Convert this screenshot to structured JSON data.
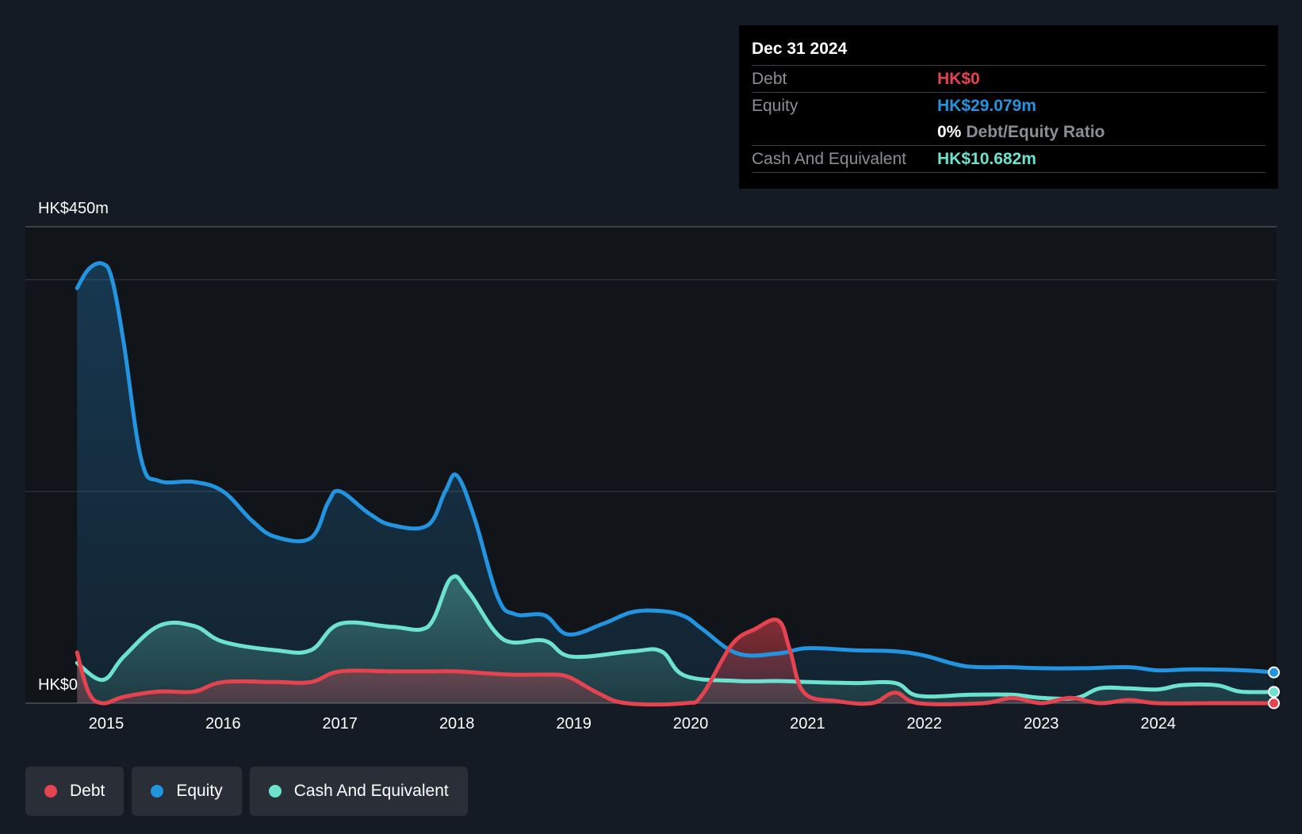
{
  "colors": {
    "background": "#151b24",
    "plot_background": "#111418",
    "debt": "#e5434f",
    "equity": "#2394df",
    "cash": "#6de3cf",
    "gridline": "#3a3f47"
  },
  "tooltip": {
    "date": "Dec 31 2024",
    "debt_label": "Debt",
    "debt_value": "HK$0",
    "equity_label": "Equity",
    "equity_value": "HK$29.079m",
    "ratio_value": "0%",
    "ratio_label": "Debt/Equity Ratio",
    "cash_label": "Cash And Equivalent",
    "cash_value": "HK$10.682m"
  },
  "legend": {
    "debt": "Debt",
    "equity": "Equity",
    "cash": "Cash And Equivalent"
  },
  "chart_data": {
    "type": "area",
    "title": "",
    "xlabel": "",
    "ylabel": "",
    "y_max_label": "HK$450m",
    "y_min_label": "HK$0",
    "ylim": [
      0,
      450
    ],
    "xlim": [
      2014.75,
      2024.99
    ],
    "x_ticks": [
      2015,
      2016,
      2017,
      2018,
      2019,
      2020,
      2021,
      2022,
      2023,
      2024
    ],
    "x_tick_labels": [
      "2015",
      "2016",
      "2017",
      "2018",
      "2019",
      "2020",
      "2021",
      "2022",
      "2023",
      "2024"
    ],
    "gridlines": [
      450,
      400,
      200,
      0
    ],
    "grid": true,
    "series": [
      {
        "name": "Equity",
        "color": "#2394df",
        "points": [
          [
            2014.75,
            392
          ],
          [
            2014.85,
            410
          ],
          [
            2014.97,
            415
          ],
          [
            2015.05,
            400
          ],
          [
            2015.15,
            340
          ],
          [
            2015.3,
            230
          ],
          [
            2015.45,
            210
          ],
          [
            2015.75,
            209
          ],
          [
            2016.0,
            200
          ],
          [
            2016.25,
            172
          ],
          [
            2016.45,
            157
          ],
          [
            2016.75,
            156
          ],
          [
            2016.9,
            190
          ],
          [
            2017.0,
            200
          ],
          [
            2017.25,
            179
          ],
          [
            2017.45,
            168
          ],
          [
            2017.75,
            168
          ],
          [
            2017.9,
            200
          ],
          [
            2018.0,
            215
          ],
          [
            2018.15,
            175
          ],
          [
            2018.35,
            100
          ],
          [
            2018.5,
            84
          ],
          [
            2018.75,
            83
          ],
          [
            2018.95,
            65
          ],
          [
            2019.25,
            75
          ],
          [
            2019.5,
            86
          ],
          [
            2019.75,
            87
          ],
          [
            2019.95,
            82
          ],
          [
            2020.1,
            70
          ],
          [
            2020.4,
            47
          ],
          [
            2020.75,
            47
          ],
          [
            2021.0,
            52
          ],
          [
            2021.4,
            50
          ],
          [
            2021.75,
            49
          ],
          [
            2022.0,
            45
          ],
          [
            2022.35,
            35
          ],
          [
            2022.75,
            34
          ],
          [
            2023.0,
            33
          ],
          [
            2023.35,
            33
          ],
          [
            2023.75,
            34
          ],
          [
            2024.0,
            31
          ],
          [
            2024.3,
            32
          ],
          [
            2024.75,
            31
          ],
          [
            2024.99,
            29.079
          ]
        ]
      },
      {
        "name": "Cash And Equivalent",
        "color": "#6de3cf",
        "points": [
          [
            2014.75,
            38
          ],
          [
            2014.97,
            22
          ],
          [
            2015.15,
            44
          ],
          [
            2015.45,
            73
          ],
          [
            2015.75,
            73
          ],
          [
            2016.0,
            58
          ],
          [
            2016.45,
            50
          ],
          [
            2016.75,
            50
          ],
          [
            2017.0,
            75
          ],
          [
            2017.45,
            72
          ],
          [
            2017.75,
            72
          ],
          [
            2017.95,
            118
          ],
          [
            2018.1,
            105
          ],
          [
            2018.4,
            60
          ],
          [
            2018.75,
            59
          ],
          [
            2018.98,
            44
          ],
          [
            2019.5,
            49
          ],
          [
            2019.75,
            49
          ],
          [
            2019.95,
            26
          ],
          [
            2020.4,
            21
          ],
          [
            2020.75,
            21
          ],
          [
            2021.0,
            20
          ],
          [
            2021.4,
            19
          ],
          [
            2021.75,
            19
          ],
          [
            2021.95,
            7
          ],
          [
            2022.4,
            8
          ],
          [
            2022.75,
            8
          ],
          [
            2023.0,
            5
          ],
          [
            2023.3,
            5
          ],
          [
            2023.5,
            14
          ],
          [
            2023.75,
            14
          ],
          [
            2024.0,
            13
          ],
          [
            2024.2,
            17
          ],
          [
            2024.5,
            17
          ],
          [
            2024.7,
            11
          ],
          [
            2024.99,
            10.682
          ]
        ]
      },
      {
        "name": "Debt",
        "color": "#e5434f",
        "points": [
          [
            2014.75,
            48
          ],
          [
            2014.85,
            10
          ],
          [
            2014.97,
            0
          ],
          [
            2015.15,
            6
          ],
          [
            2015.45,
            11
          ],
          [
            2015.75,
            11
          ],
          [
            2016.0,
            20
          ],
          [
            2016.45,
            20
          ],
          [
            2016.75,
            20
          ],
          [
            2017.0,
            30
          ],
          [
            2017.45,
            30
          ],
          [
            2017.75,
            30
          ],
          [
            2018.0,
            30
          ],
          [
            2018.45,
            27
          ],
          [
            2018.75,
            27
          ],
          [
            2018.95,
            25
          ],
          [
            2019.2,
            10
          ],
          [
            2019.45,
            0
          ],
          [
            2019.95,
            0
          ],
          [
            2020.1,
            8
          ],
          [
            2020.35,
            55
          ],
          [
            2020.55,
            70
          ],
          [
            2020.75,
            78
          ],
          [
            2020.85,
            50
          ],
          [
            2020.97,
            10
          ],
          [
            2021.25,
            2
          ],
          [
            2021.55,
            0
          ],
          [
            2021.75,
            10
          ],
          [
            2021.95,
            0
          ],
          [
            2022.5,
            0
          ],
          [
            2022.75,
            5
          ],
          [
            2023.0,
            0
          ],
          [
            2023.25,
            5
          ],
          [
            2023.5,
            0
          ],
          [
            2023.75,
            3
          ],
          [
            2024.0,
            0
          ],
          [
            2024.5,
            0
          ],
          [
            2024.99,
            0
          ]
        ]
      }
    ],
    "legend_position": "bottom-left"
  }
}
